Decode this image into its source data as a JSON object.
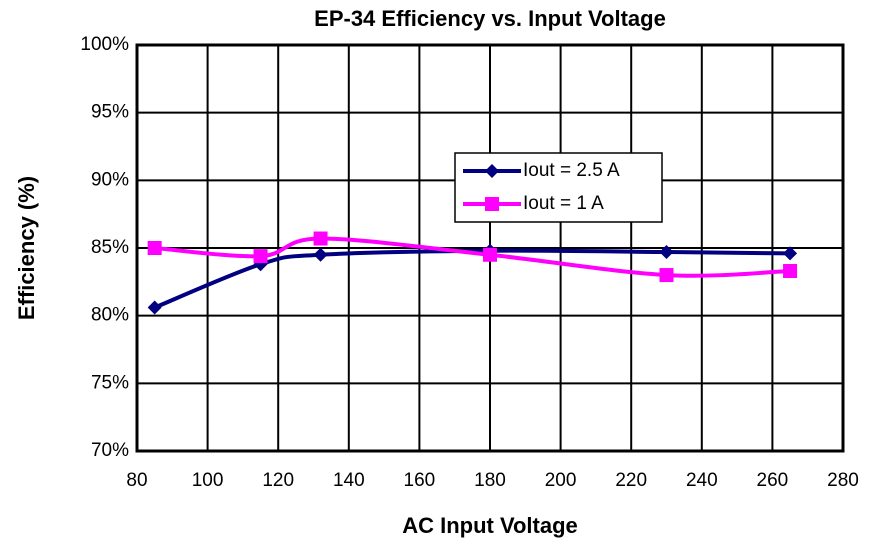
{
  "chart_data": {
    "type": "line",
    "title": "EP-34 Efficiency vs. Input Voltage",
    "x_label": "AC Input Voltage",
    "y_label": "Efficiency (%)",
    "x": [
      85,
      115,
      132,
      180,
      230,
      265
    ],
    "series": [
      {
        "name": "Iout = 2.5 A",
        "color": "#000080",
        "marker": "diamond",
        "values": [
          80.6,
          83.8,
          84.5,
          84.8,
          84.7,
          84.6
        ]
      },
      {
        "name": "Iout = 1 A",
        "color": "#ff00ff",
        "marker": "square",
        "values": [
          85.0,
          84.4,
          85.7,
          84.5,
          83.0,
          83.3
        ]
      }
    ],
    "xlim": [
      80,
      280
    ],
    "xticks": [
      80,
      100,
      120,
      140,
      160,
      180,
      200,
      220,
      240,
      260,
      280
    ],
    "ylim": [
      70,
      100
    ],
    "yticks": [
      {
        "value": 70,
        "label": "70%"
      },
      {
        "value": 75,
        "label": "75%"
      },
      {
        "value": 80,
        "label": "80%"
      },
      {
        "value": 85,
        "label": "85%"
      },
      {
        "value": 90,
        "label": "90%"
      },
      {
        "value": 95,
        "label": "95%"
      },
      {
        "value": 100,
        "label": "100%"
      }
    ],
    "grid": true,
    "smooth": true,
    "legend": "center"
  }
}
